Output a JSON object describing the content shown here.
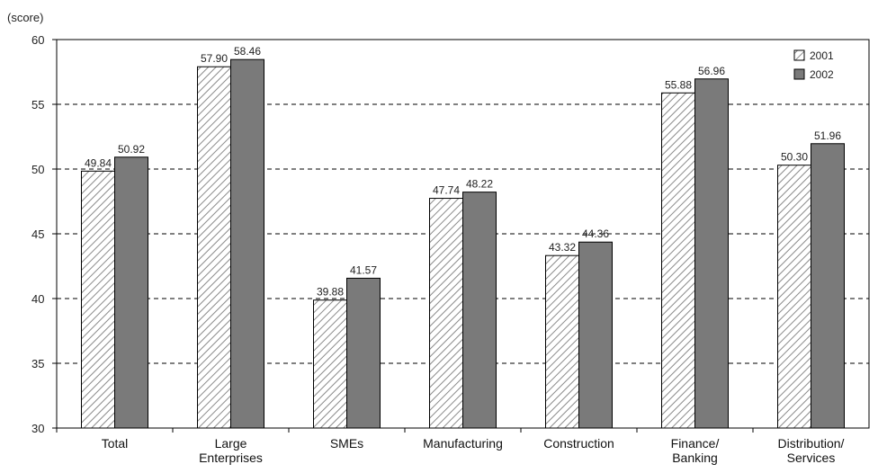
{
  "chart_data": {
    "type": "bar",
    "ylabel": "(score)",
    "ylim": [
      30,
      60
    ],
    "yticks": [
      30,
      35,
      40,
      45,
      50,
      55,
      60
    ],
    "grid": "horizontal dashed",
    "legend_position": "top-right",
    "categories": [
      [
        "Total"
      ],
      [
        "Large",
        "Enterprises"
      ],
      [
        "SMEs"
      ],
      [
        "Manufacturing"
      ],
      [
        "Construction"
      ],
      [
        "Finance/",
        "Banking"
      ],
      [
        "Distribution/",
        "Services"
      ]
    ],
    "series": [
      {
        "name": "2001",
        "values": [
          49.84,
          57.9,
          39.88,
          47.74,
          43.32,
          55.88,
          50.3
        ],
        "labels": [
          "49.84",
          "57.90",
          "39.88",
          "47.74",
          "43.32",
          "55.88",
          "50.30"
        ],
        "fill": "hatched",
        "color": "#ffffff",
        "hatch_color": "#8a8a8a"
      },
      {
        "name": "2002",
        "values": [
          50.92,
          58.46,
          41.57,
          48.22,
          44.36,
          56.96,
          51.96
        ],
        "labels": [
          "50.92",
          "58.46",
          "41.57",
          "48.22",
          "44.36",
          "56.96",
          "51.96"
        ],
        "fill": "solid",
        "color": "#7a7a7a"
      }
    ]
  }
}
